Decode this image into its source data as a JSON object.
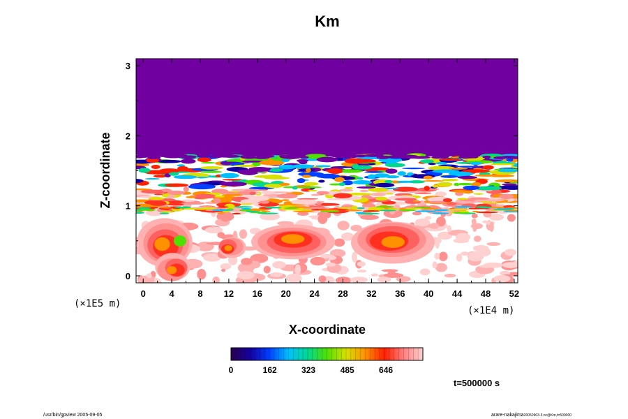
{
  "chart_data": {
    "type": "heatmap",
    "title": "Km",
    "xlabel": "X-coordinate",
    "ylabel": "Z-coordinate",
    "xlim": [
      -1,
      52.5
    ],
    "ylim": [
      -0.1,
      3.1
    ],
    "x_ticks": [
      "0",
      "4",
      "8",
      "12",
      "16",
      "20",
      "24",
      "28",
      "32",
      "36",
      "40",
      "44",
      "48",
      "52"
    ],
    "y_ticks": [
      "0",
      "1",
      "2",
      "3"
    ],
    "x_unit": "(×1E4 m)",
    "z_unit": "(×1E5 m)",
    "colorbar": {
      "ticks": [
        "0",
        "162",
        "323",
        "485",
        "646"
      ],
      "range": [
        0,
        800
      ],
      "colors": [
        "#2a0050",
        "#1400a0",
        "#0040ff",
        "#00c0ff",
        "#00d890",
        "#50e000",
        "#d8e000",
        "#ff9000",
        "#ff2000",
        "#ff8080",
        "#ffd0d0"
      ]
    },
    "top_region_color": "#7000a0",
    "annotation": "t=500000 s",
    "footer_left": "/usr/bin/gpview 2005-09-05",
    "footer_right": "arare-nakajima",
    "footer_right_small": "20050903-3.nc@Km,t=500000"
  }
}
